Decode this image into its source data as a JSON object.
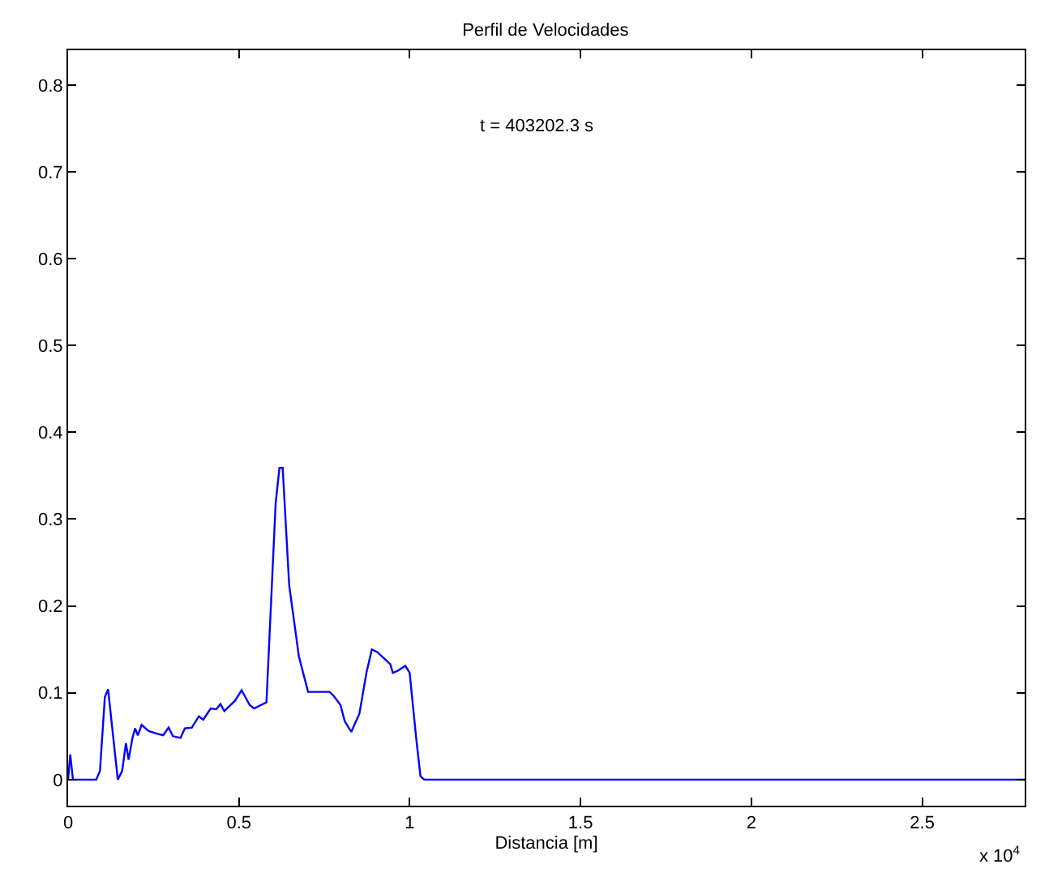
{
  "chart_data": {
    "type": "line",
    "title": "Perfil de Velocidades",
    "xlabel": "Distancia [m]",
    "annotations": [
      "t = 403202.3 s",
      "x 10$^{4}$"
    ],
    "x": [
      0,
      0.0063,
      0.0142,
      0.0823,
      0.0933,
      0.1076,
      0.1171,
      0.1455,
      0.1582,
      0.1693,
      0.1772,
      0.1883,
      0.1962,
      0.2041,
      0.2152,
      0.2357,
      0.2594,
      0.2784,
      0.2942,
      0.3069,
      0.329,
      0.3417,
      0.3623,
      0.3828,
      0.3955,
      0.4176,
      0.4335,
      0.4461,
      0.4572,
      0.4888,
      0.5078,
      0.5315,
      0.5442,
      0.5806,
      0.6075,
      0.6186,
      0.6281,
      0.6471,
      0.6755,
      0.7024,
      0.7657,
      0.7783,
      0.7973,
      0.8099,
      0.8289,
      0.8527,
      0.8733,
      0.8891,
      0.9049,
      0.9239,
      0.9429,
      0.9508,
      0.9634,
      0.9872,
      0.9998,
      1.0188,
      1.0314,
      1.0425,
      2.8
    ],
    "series": [
      {
        "color": "#0000ff",
        "values": [
          0,
          0.029,
          0,
          0,
          0.01,
          0.095,
          0.104,
          0,
          0.01,
          0.042,
          0.023,
          0.048,
          0.059,
          0.051,
          0.063,
          0.056,
          0.053,
          0.051,
          0.06,
          0.05,
          0.048,
          0.059,
          0.06,
          0.073,
          0.069,
          0.082,
          0.081,
          0.087,
          0.079,
          0.091,
          0.103,
          0.086,
          0.082,
          0.089,
          0.318,
          0.359,
          0.359,
          0.224,
          0.142,
          0.101,
          0.101,
          0.096,
          0.086,
          0.067,
          0.055,
          0.076,
          0.123,
          0.15,
          0.147,
          0.14,
          0.133,
          0.123,
          0.125,
          0.131,
          0.123,
          0.048,
          0.004,
          0,
          0
        ]
      }
    ],
    "xlim": [
      0,
      2.8
    ],
    "ylim": [
      -0.03,
      0.84
    ],
    "xticks": [
      0,
      0.5,
      1,
      1.5,
      2,
      2.5
    ],
    "yticks": [
      0,
      0.1,
      0.2,
      0.3,
      0.4,
      0.5,
      0.6,
      0.7,
      0.8
    ],
    "legend": false,
    "marker": "none",
    "line_style": "solid"
  }
}
